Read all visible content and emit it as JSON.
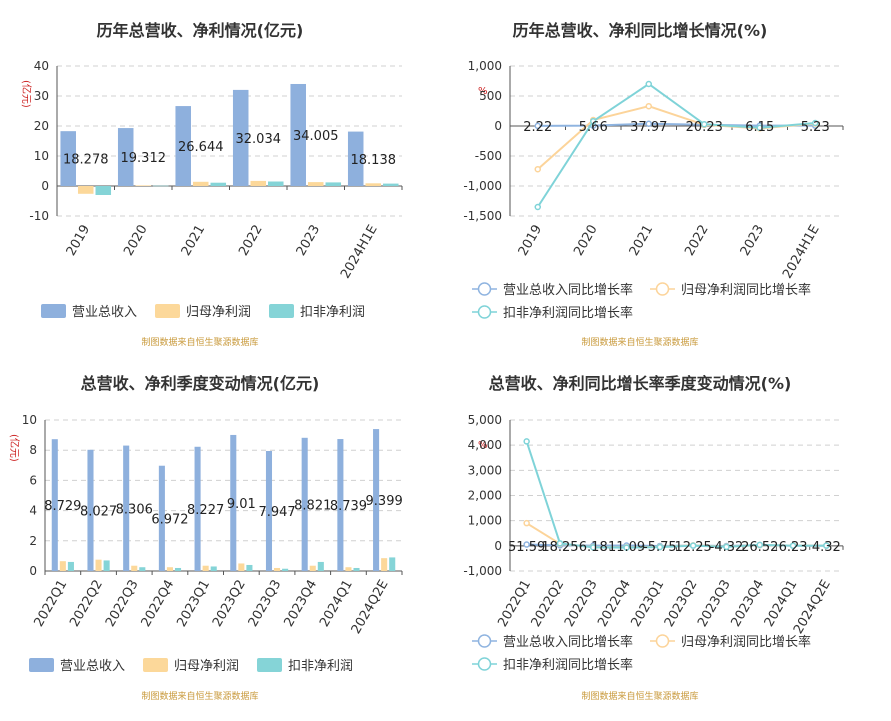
{
  "source_note": "制图数据来自恒生聚源数据库",
  "colors": {
    "revenue": "#8eb0dd",
    "net_profit": "#fcd89a",
    "deducted_net_profit": "#85d4d7",
    "source_note": "#c99a3c",
    "axis_unit": "#cc2222"
  },
  "chart_data": [
    {
      "type": "bar",
      "title": "历年总营收、净利情况(亿元)",
      "ylabel": "(亿元)",
      "ylim": [
        -10,
        40
      ],
      "yticks": [
        -10,
        0,
        10,
        20,
        30,
        40
      ],
      "grid": true,
      "legend_position": "bottom",
      "categories": [
        "2019",
        "2020",
        "2021",
        "2022",
        "2023",
        "2024H1E"
      ],
      "series": [
        {
          "name": "营业总收入",
          "values": [
            18.278,
            19.312,
            26.644,
            32.034,
            34.005,
            18.138
          ],
          "labels": [
            "18.278",
            "19.312",
            "26.644",
            "32.034",
            "34.005",
            "18.138"
          ]
        },
        {
          "name": "归母净利润",
          "values": [
            -2.6,
            0.2,
            1.4,
            1.7,
            1.3,
            0.9
          ]
        },
        {
          "name": "扣非净利润",
          "values": [
            -3.0,
            0.1,
            1.1,
            1.5,
            1.2,
            0.8
          ]
        }
      ]
    },
    {
      "type": "line",
      "title": "历年总营收、净利同比增长情况(%)",
      "ylabel": "%",
      "ylim": [
        -1500,
        1000
      ],
      "yticks": [
        -1500,
        -1000,
        -500,
        0,
        500,
        1000
      ],
      "grid": true,
      "legend_position": "bottom",
      "categories": [
        "2019",
        "2020",
        "2021",
        "2022",
        "2023",
        "2024H1E"
      ],
      "series": [
        {
          "name": "营业总收入同比增长率",
          "values": [
            2.22,
            5.66,
            37.97,
            20.23,
            6.15,
            5.23
          ],
          "labels": [
            "2.22",
            "5.66",
            "37.97",
            "20.23",
            "6.15",
            "5.23"
          ]
        },
        {
          "name": "归母净利润同比增长率",
          "values": [
            -720,
            100,
            330,
            20,
            -40,
            40
          ]
        },
        {
          "name": "扣非净利润同比增长率",
          "values": [
            -1350,
            80,
            700,
            30,
            -30,
            50
          ]
        }
      ]
    },
    {
      "type": "bar",
      "title": "总营收、净利季度变动情况(亿元)",
      "ylabel": "(亿元)",
      "ylim": [
        0,
        10
      ],
      "yticks": [
        0,
        2,
        4,
        6,
        8,
        10
      ],
      "grid": true,
      "legend_position": "bottom",
      "categories": [
        "2022Q1",
        "2022Q2",
        "2022Q3",
        "2022Q4",
        "2023Q1",
        "2023Q2",
        "2023Q3",
        "2023Q4",
        "2024Q1",
        "2024Q2E"
      ],
      "series": [
        {
          "name": "营业总收入",
          "values": [
            8.729,
            8.027,
            8.306,
            6.972,
            8.227,
            9.01,
            7.947,
            8.821,
            8.739,
            9.399
          ],
          "labels": [
            "8.729",
            "8.027",
            "8.306",
            "6.972",
            "8.227",
            "9.01",
            "7.947",
            "8.821",
            "8.739",
            "9.399"
          ]
        },
        {
          "name": "归母净利润",
          "values": [
            0.65,
            0.75,
            0.35,
            0.25,
            0.35,
            0.5,
            0.2,
            0.35,
            0.25,
            0.85
          ]
        },
        {
          "name": "扣非净利润",
          "values": [
            0.6,
            0.7,
            0.25,
            0.2,
            0.3,
            0.4,
            0.15,
            0.6,
            0.2,
            0.9
          ]
        }
      ]
    },
    {
      "type": "line",
      "title": "总营收、净利同比增长率季度变动情况(%)",
      "ylabel": "%",
      "ylim": [
        -1000,
        5000
      ],
      "yticks": [
        -1000,
        0,
        1000,
        2000,
        3000,
        4000,
        5000
      ],
      "grid": true,
      "legend_position": "bottom",
      "categories": [
        "2022Q1",
        "2022Q2",
        "2022Q3",
        "2022Q4",
        "2023Q1",
        "2023Q2",
        "2023Q3",
        "2023Q4",
        "2024Q1",
        "2024Q2E"
      ],
      "series": [
        {
          "name": "营业总收入同比增长率",
          "values": [
            51.59,
            18.25,
            6.18,
            11.09,
            -5.75,
            12.25,
            -4.32,
            26.52,
            6.23,
            4.32
          ],
          "labels": [
            "51.59",
            "18.25",
            "6.18",
            "11.09",
            "-5.75",
            "12.25",
            "-4.32",
            "26.52",
            "6.23",
            "4.32"
          ]
        },
        {
          "name": "归母净利润同比增长率",
          "values": [
            900,
            80,
            -50,
            -60,
            -40,
            20,
            -30,
            30,
            10,
            10
          ]
        },
        {
          "name": "扣非净利润同比增长率",
          "values": [
            4150,
            100,
            -60,
            -70,
            -50,
            10,
            -40,
            40,
            5,
            10
          ]
        }
      ]
    }
  ]
}
